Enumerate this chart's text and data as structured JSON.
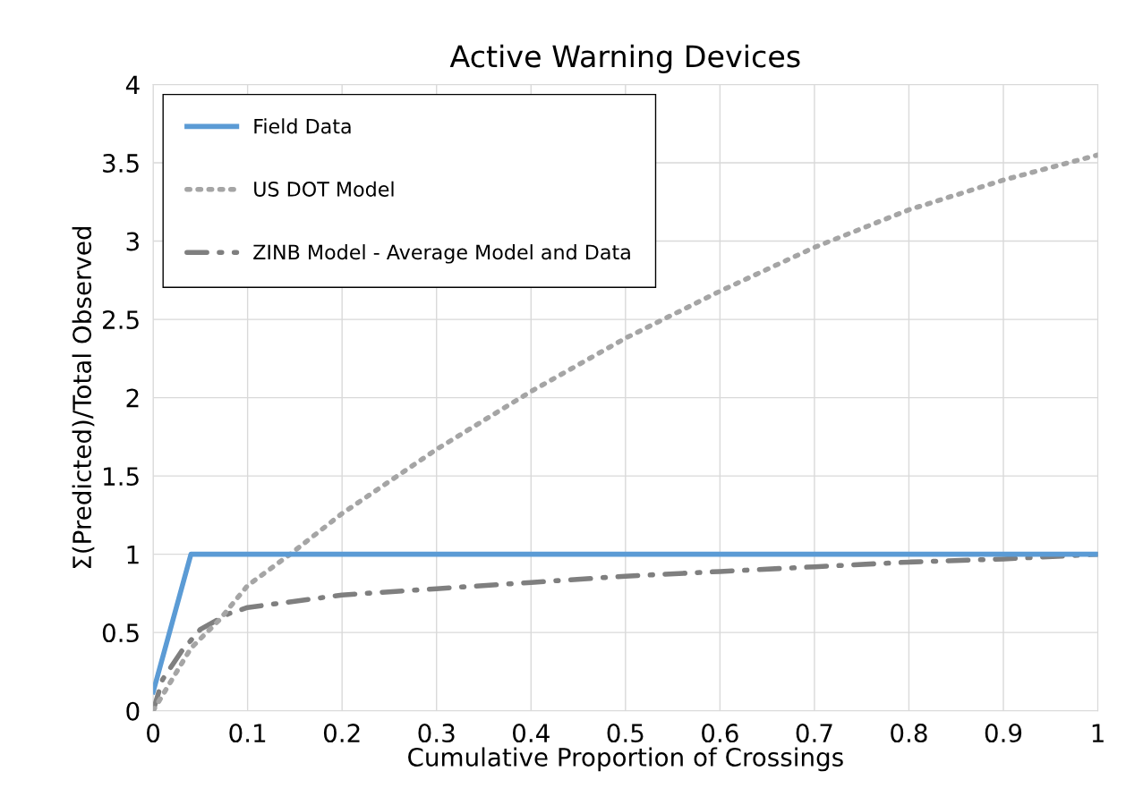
{
  "chart_data": {
    "type": "line",
    "title": "Active Warning Devices",
    "xlabel": "Cumulative Proportion of Crossings",
    "ylabel": "Σ(Predicted)/Total Observed",
    "xlim": [
      0,
      1
    ],
    "xticks": [
      0,
      0.1,
      0.2,
      0.3,
      0.4,
      0.5,
      0.6,
      0.7,
      0.8,
      0.9,
      1
    ],
    "ylim": [
      0,
      4
    ],
    "yticks": [
      0,
      0.5,
      1,
      1.5,
      2,
      2.5,
      3,
      3.5,
      4
    ],
    "grid": true,
    "legend": "top left",
    "series": [
      {
        "name": "Field Data",
        "color": "#5b9bd5",
        "line_style": "solid",
        "x": [
          0,
          0.04,
          1
        ],
        "values": [
          0.12,
          1,
          1
        ]
      },
      {
        "name": "US DOT Model",
        "color": "#a5a5a5",
        "line_style": "dotted",
        "x": [
          0,
          0.02,
          0.04,
          0.07,
          0.1,
          0.145,
          0.2,
          0.3,
          0.4,
          0.5,
          0.6,
          0.7,
          0.8,
          0.9,
          1
        ],
        "values": [
          0,
          0.2,
          0.4,
          0.58,
          0.8,
          1.0,
          1.26,
          1.67,
          2.04,
          2.38,
          2.68,
          2.96,
          3.2,
          3.39,
          3.55
        ]
      },
      {
        "name": "ZINB Model - Average Model and Data",
        "color": "#7f7f7f",
        "line_style": "dashdot",
        "x": [
          0,
          0.01,
          0.03,
          0.05,
          0.08,
          0.1,
          0.2,
          0.3,
          0.4,
          0.5,
          0.6,
          0.7,
          0.8,
          0.9,
          1
        ],
        "values": [
          0,
          0.2,
          0.38,
          0.52,
          0.62,
          0.66,
          0.74,
          0.78,
          0.82,
          0.86,
          0.89,
          0.92,
          0.95,
          0.97,
          1.0
        ]
      }
    ]
  }
}
